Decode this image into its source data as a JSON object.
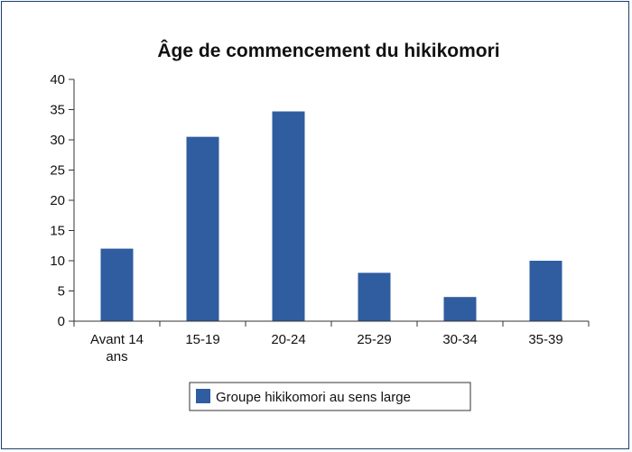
{
  "chart_data": {
    "type": "bar",
    "title": "Âge de commencement du hikikomori",
    "categories": [
      [
        "Avant 14",
        "ans"
      ],
      [
        "15-19"
      ],
      [
        "20-24"
      ],
      [
        "25-29"
      ],
      [
        "30-34"
      ],
      [
        "35-39"
      ]
    ],
    "series": [
      {
        "name": "Groupe hikikomori au sens large",
        "values": [
          12,
          30.5,
          34.7,
          8,
          4,
          10
        ]
      }
    ],
    "yticks": [
      "0",
      "5",
      "10",
      "15",
      "20",
      "25",
      "30",
      "35",
      "40"
    ],
    "ylim": [
      0,
      40
    ],
    "grid": false,
    "legend_position": "bottom",
    "colors": {
      "bar": "#2f5d9f",
      "axis": "#333333",
      "frame": "#1a3e70"
    }
  }
}
